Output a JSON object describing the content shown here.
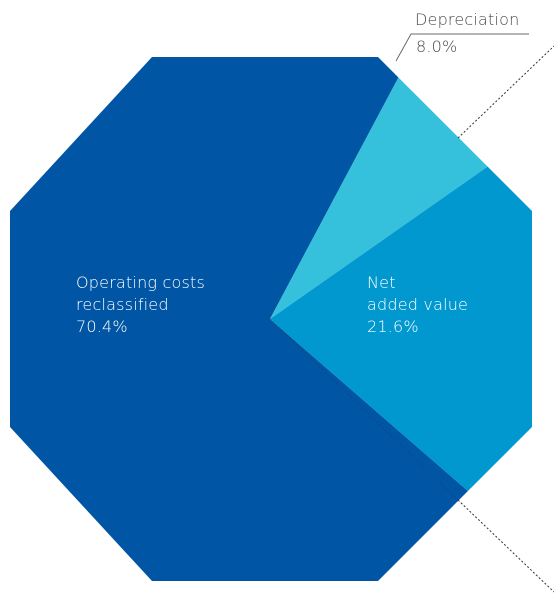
{
  "chart_data": {
    "type": "pie",
    "shape": "octagon",
    "title": "",
    "slices": [
      {
        "label_lines": [
          "Operating costs",
          "reclassified"
        ],
        "value_text": "70.4%",
        "value": 70.4,
        "color": "#0055A4",
        "label_placement": "inside"
      },
      {
        "label_lines": [
          "Depreciation"
        ],
        "value_text": "8.0%",
        "value": 8.0,
        "color": "#35C0DC",
        "label_placement": "outside-top-right"
      },
      {
        "label_lines": [
          "Net",
          "added value"
        ],
        "value_text": "21.6%",
        "value": 21.6,
        "color": "#0098CF",
        "label_placement": "inside",
        "exploded_style": "dotted-guide-lines"
      }
    ],
    "colors": {
      "background": "#ffffff",
      "inside_text": "#ffffff",
      "outside_text": "#4a4a4a",
      "guide_lines": "#333333"
    }
  }
}
